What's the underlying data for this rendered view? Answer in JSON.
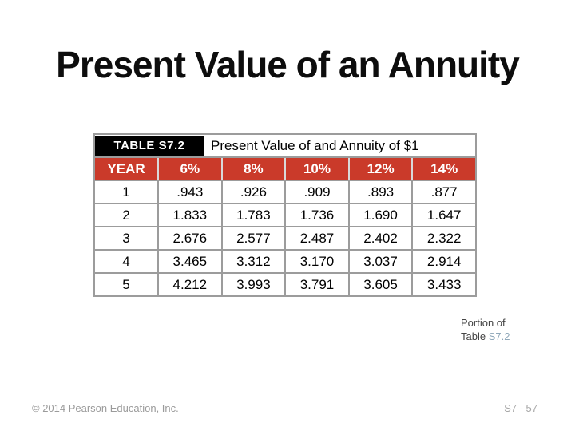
{
  "slide": {
    "title": "Present Value of an Annuity",
    "table": {
      "tag": "TABLE S7.2",
      "caption": "Present Value of and Annuity of $1",
      "columns": [
        "YEAR",
        "6%",
        "8%",
        "10%",
        "12%",
        "14%"
      ],
      "rows": [
        [
          "1",
          ".943",
          ".926",
          ".909",
          ".893",
          ".877"
        ],
        [
          "2",
          "1.833",
          "1.783",
          "1.736",
          "1.690",
          "1.647"
        ],
        [
          "3",
          "2.676",
          "2.577",
          "2.487",
          "2.402",
          "2.322"
        ],
        [
          "4",
          "3.465",
          "3.312",
          "3.170",
          "3.037",
          "2.914"
        ],
        [
          "5",
          "4.212",
          "3.993",
          "3.791",
          "3.605",
          "3.433"
        ]
      ]
    },
    "note": {
      "line1": "Portion of",
      "line2_prefix": "Table ",
      "line2_ref": "S7.2"
    },
    "footer": {
      "left": "© 2014 Pearson Education, Inc.",
      "right": "S7 - 57"
    },
    "colors": {
      "header_red": "#ca3a2a",
      "tag_background": "#000000",
      "border_gray": "#9c9c9c",
      "note_ref_blue": "#8fa7b9",
      "footer_gray": "#9b9b9b"
    }
  },
  "chart_data": {
    "type": "table",
    "title": "Present Value of and Annuity of $1",
    "tag": "TABLE S7.2",
    "columns": [
      "YEAR",
      "6%",
      "8%",
      "10%",
      "12%",
      "14%"
    ],
    "rows": [
      [
        1,
        0.943,
        0.926,
        0.909,
        0.893,
        0.877
      ],
      [
        2,
        1.833,
        1.783,
        1.736,
        1.69,
        1.647
      ],
      [
        3,
        2.676,
        2.577,
        2.487,
        2.402,
        2.322
      ],
      [
        4,
        3.465,
        3.312,
        3.17,
        3.037,
        2.914
      ],
      [
        5,
        4.212,
        3.993,
        3.791,
        3.605,
        3.433
      ]
    ]
  }
}
